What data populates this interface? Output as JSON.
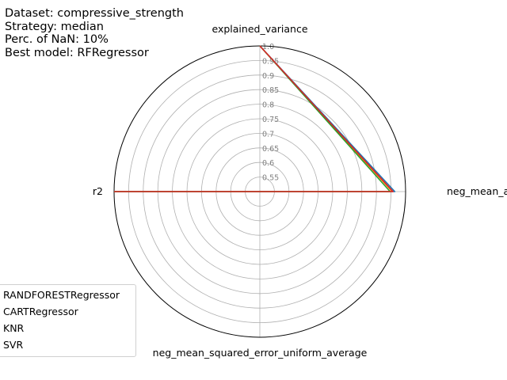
{
  "info": {
    "dataset": "Dataset: compressive_strength",
    "strategy": "Strategy: median",
    "nan": "Perc. of NaN: 10%",
    "best": "Best model: RFRegressor"
  },
  "chart_data": {
    "type": "radar",
    "axes": [
      "explained_variance",
      "neg_mean_absolute_error_uniform_average",
      "neg_mean_squared_error_uniform_average",
      "r2"
    ],
    "rlim": [
      0.5,
      1.0
    ],
    "radial_ticks": [
      "0.55",
      "0.6",
      "0.65",
      "0.7",
      "0.75",
      "0.8",
      "0.85",
      "0.9",
      "0.95",
      "1.0"
    ],
    "grid": true,
    "legend_position": "lower-left",
    "series": [
      {
        "name": "RANDFORESTRegressor",
        "color": "#1f77b4",
        "values": [
          1.0,
          0.963,
          0.5,
          1.0
        ]
      },
      {
        "name": "CARTRegressor",
        "color": "#ff7f0e",
        "values": [
          1.0,
          0.954,
          0.5,
          1.0
        ]
      },
      {
        "name": "KNR",
        "color": "#2ca02c",
        "values": [
          1.0,
          0.947,
          0.5,
          1.0
        ]
      },
      {
        "name": "SVR",
        "color": "#d62728",
        "values": [
          1.0,
          0.957,
          0.5,
          1.0
        ]
      }
    ]
  }
}
